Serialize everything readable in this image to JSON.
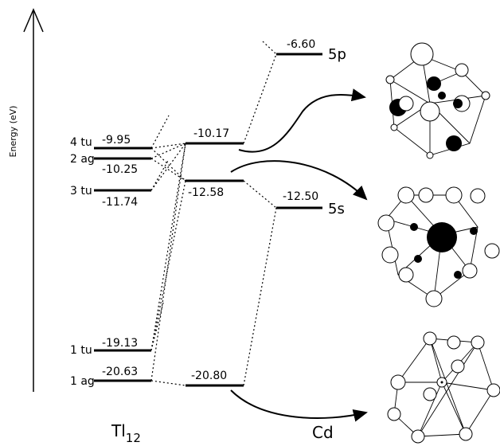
{
  "axis_label": "Energy (eV)",
  "tl12": {
    "label": "Tl",
    "subscript": "12",
    "levels": [
      {
        "name": "4 tu",
        "energy": "-9.95"
      },
      {
        "name": "2 ag",
        "energy": "-10.25"
      },
      {
        "name": "3 tu",
        "energy": "-11.74"
      },
      {
        "name": "1 tu",
        "energy": "-19.13"
      },
      {
        "name": "1 ag",
        "energy": "-20.63"
      }
    ]
  },
  "complex": {
    "levels": [
      "-10.17",
      "-12.58",
      "-20.80"
    ]
  },
  "cd": {
    "label": "Cd",
    "levels": [
      {
        "name": "5p",
        "energy": "-6.60"
      },
      {
        "name": "5s",
        "energy": "-12.50"
      }
    ]
  }
}
